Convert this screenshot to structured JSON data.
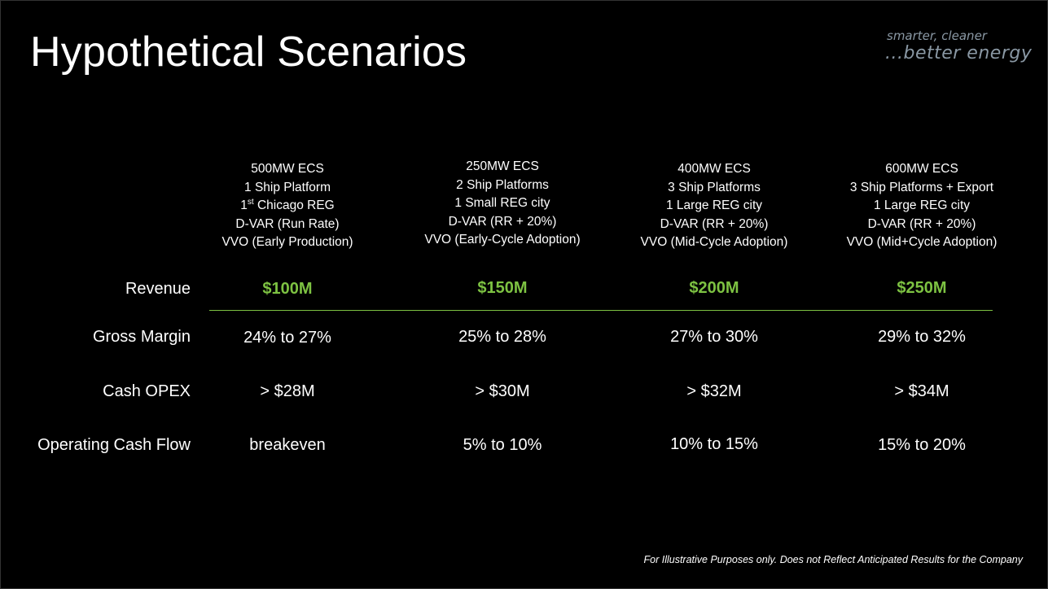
{
  "title": "Hypothetical Scenarios",
  "logo": {
    "line1": "smarter, cleaner",
    "line2": "...better energy"
  },
  "scenarios": [
    {
      "lines": [
        "500MW ECS",
        "1 Ship Platform",
        "Chicago REG",
        "D-VAR (Run Rate)",
        "VVO (Early Production)"
      ],
      "ordinal_prefix": "1",
      "ordinal_sup": "st",
      "revenue": "$100M",
      "gross_margin": "24% to 27%",
      "cash_opex": "> $28M",
      "operating_cash_flow": "breakeven"
    },
    {
      "lines": [
        "250MW ECS",
        "2 Ship Platforms",
        "1 Small REG city",
        "D-VAR (RR + 20%)",
        "VVO (Early-Cycle Adoption)"
      ],
      "revenue": "$150M",
      "gross_margin": "25% to 28%",
      "cash_opex": "> $30M",
      "operating_cash_flow": "5% to 10%"
    },
    {
      "lines": [
        "400MW ECS",
        "3 Ship Platforms",
        "1 Large REG city",
        "D-VAR (RR + 20%)",
        "VVO (Mid-Cycle Adoption)"
      ],
      "revenue": "$200M",
      "gross_margin": "27% to 30%",
      "cash_opex": "> $32M",
      "operating_cash_flow": "10% to 15%"
    },
    {
      "lines": [
        "600MW ECS",
        "3 Ship Platforms + Export",
        "1 Large REG city",
        "D-VAR (RR + 20%)",
        "VVO (Mid+Cycle Adoption)"
      ],
      "revenue": "$250M",
      "gross_margin": "29% to 32%",
      "cash_opex": "> $34M",
      "operating_cash_flow": "15% to 20%"
    }
  ],
  "row_labels": {
    "revenue": "Revenue",
    "gross_margin": "Gross Margin",
    "cash_opex": "Cash OPEX",
    "operating_cash_flow": "Operating Cash Flow"
  },
  "footnote": "For Illustrative Purposes only. Does not Reflect Anticipated Results for the Company",
  "colors": {
    "background": "#000000",
    "text": "#ffffff",
    "accent_green": "#7dc242",
    "logo_gray": "#8a98a4"
  }
}
